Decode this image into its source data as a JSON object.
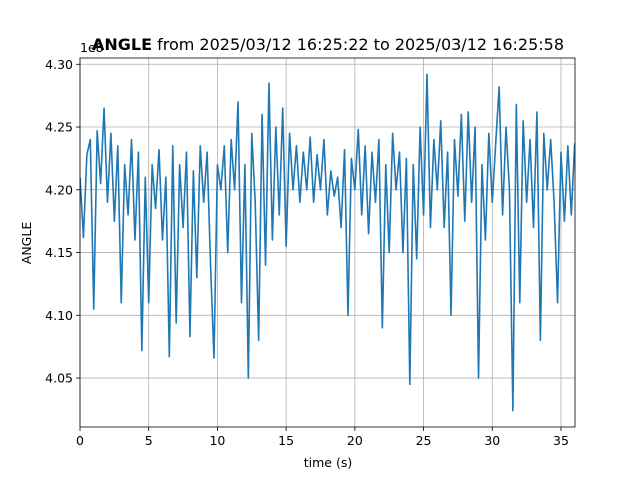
{
  "chart_data": {
    "type": "line",
    "title": {
      "name": "ANGLE",
      "text": "from 2025/03/12 16:25:22 to 2025/03/12 16:25:58"
    },
    "x_label": "time (s)",
    "y_label": "ANGLE",
    "offset_label": "1e8",
    "xlim": [
      0,
      36.02
    ],
    "ylim": [
      4.011,
      4.305
    ],
    "xticks": [
      0,
      5,
      10,
      15,
      20,
      25,
      30,
      35
    ],
    "yticks": [
      {
        "value": 4.05,
        "label": "4.05"
      },
      {
        "value": 4.1,
        "label": "4.10"
      },
      4.15,
      {
        "value": 4.2,
        "label": "4.20"
      },
      4.25,
      {
        "value": 4.3,
        "label": "4.30"
      }
    ],
    "grid": true,
    "x": [
      0,
      0.25,
      0.5,
      0.75,
      1,
      1.25,
      1.5,
      1.75,
      2,
      2.25,
      2.5,
      2.75,
      3,
      3.25,
      3.5,
      3.75,
      4,
      4.25,
      4.5,
      4.75,
      5,
      5.25,
      5.5,
      5.75,
      6,
      6.25,
      6.5,
      6.75,
      7,
      7.25,
      7.5,
      7.75,
      8,
      8.25,
      8.5,
      8.75,
      9,
      9.25,
      9.5,
      9.75,
      10,
      10.25,
      10.5,
      10.75,
      11,
      11.25,
      11.5,
      11.75,
      12,
      12.25,
      12.5,
      12.75,
      13,
      13.25,
      13.5,
      13.75,
      14,
      14.25,
      14.5,
      14.75,
      15,
      15.25,
      15.5,
      15.75,
      16,
      16.25,
      16.5,
      16.75,
      17,
      17.25,
      17.5,
      17.75,
      18,
      18.25,
      18.5,
      18.75,
      19,
      19.25,
      19.5,
      19.75,
      20,
      20.25,
      20.5,
      20.75,
      21,
      21.25,
      21.5,
      21.75,
      22,
      22.25,
      22.5,
      22.75,
      23,
      23.25,
      23.5,
      23.75,
      24,
      24.25,
      24.5,
      24.75,
      25,
      25.25,
      25.5,
      25.75,
      26,
      26.25,
      26.5,
      26.75,
      27,
      27.25,
      27.5,
      27.75,
      28,
      28.25,
      28.5,
      28.75,
      29,
      29.25,
      29.5,
      29.75,
      30,
      30.25,
      30.5,
      30.75,
      31,
      31.25,
      31.5,
      31.75,
      32,
      32.25,
      32.5,
      32.75,
      33,
      33.25,
      33.5,
      33.75,
      34,
      34.25,
      34.5,
      34.75,
      35,
      35.25,
      35.5,
      35.75,
      36
    ],
    "series": [
      {
        "name": "ANGLE",
        "color": "#1f77b4",
        "values": [
          4.21,
          4.162,
          4.228,
          4.24,
          4.105,
          4.247,
          4.205,
          4.265,
          4.19,
          4.245,
          4.175,
          4.235,
          4.11,
          4.22,
          4.18,
          4.24,
          4.16,
          4.23,
          4.072,
          4.21,
          4.11,
          4.22,
          4.185,
          4.232,
          4.16,
          4.21,
          4.067,
          4.235,
          4.094,
          4.22,
          4.17,
          4.23,
          4.083,
          4.215,
          4.13,
          4.235,
          4.19,
          4.23,
          4.14,
          4.066,
          4.22,
          4.2,
          4.235,
          4.15,
          4.24,
          4.2,
          4.27,
          4.11,
          4.22,
          4.05,
          4.245,
          4.19,
          4.08,
          4.26,
          4.14,
          4.285,
          4.16,
          4.25,
          4.18,
          4.265,
          4.155,
          4.245,
          4.2,
          4.235,
          4.19,
          4.23,
          4.2,
          4.242,
          4.19,
          4.228,
          4.2,
          4.24,
          4.18,
          4.215,
          4.195,
          4.21,
          4.17,
          4.232,
          4.1,
          4.225,
          4.2,
          4.248,
          4.18,
          4.235,
          4.165,
          4.23,
          4.19,
          4.24,
          4.09,
          4.22,
          4.15,
          4.245,
          4.2,
          4.23,
          4.15,
          4.225,
          4.045,
          4.22,
          4.145,
          4.25,
          4.18,
          4.292,
          4.17,
          4.24,
          4.2,
          4.255,
          4.17,
          4.23,
          4.1,
          4.24,
          4.195,
          4.26,
          4.175,
          4.262,
          4.19,
          4.25,
          4.05,
          4.22,
          4.16,
          4.245,
          4.19,
          4.237,
          4.282,
          4.18,
          4.25,
          4.2,
          4.024,
          4.268,
          4.11,
          4.255,
          4.19,
          4.24,
          4.17,
          4.262,
          4.08,
          4.245,
          4.2,
          4.24,
          4.19,
          4.11,
          4.23,
          4.175,
          4.235,
          4.18,
          4.237
        ]
      }
    ]
  }
}
